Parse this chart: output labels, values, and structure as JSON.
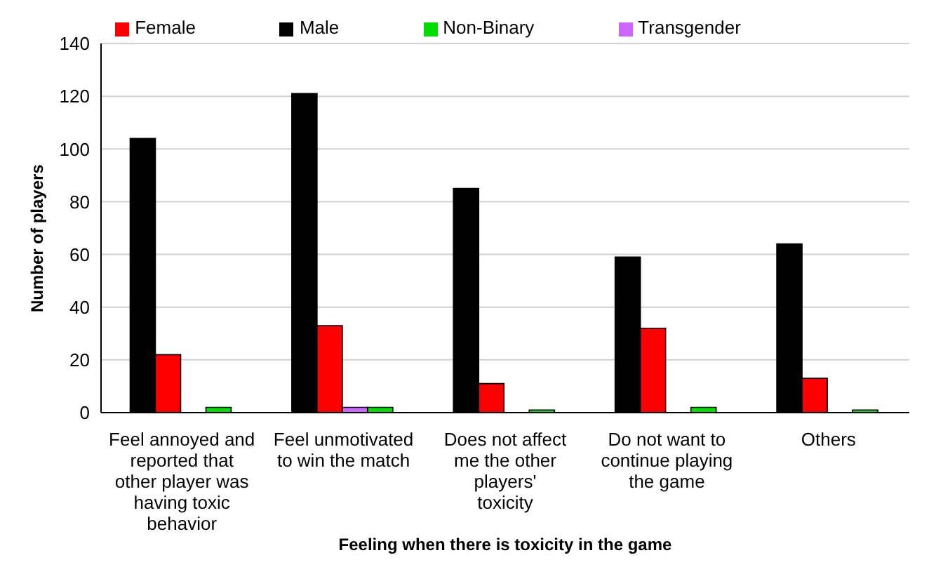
{
  "chart_data": {
    "type": "bar",
    "xlabel": "Feeling when there is toxicity in the game",
    "ylabel": "Number of players",
    "categories": [
      "Feel annoyed and reported that other player was having toxic behavior",
      "Feel unmotivated to win the match",
      "Does not affect me the other players' toxicity",
      "Do not want to continue playing the game",
      "Others"
    ],
    "series": [
      {
        "name": "Male",
        "color": "#000000",
        "values": [
          104,
          121,
          85,
          59,
          64
        ]
      },
      {
        "name": "Female",
        "color": "#ff0000",
        "values": [
          22,
          33,
          11,
          32,
          13
        ]
      },
      {
        "name": "Transgender",
        "color": "#cc66ff",
        "values": [
          0,
          2,
          0,
          0,
          0
        ]
      },
      {
        "name": "Non-Binary",
        "color": "#00dd00",
        "values": [
          2,
          2,
          1,
          2,
          1
        ]
      }
    ],
    "ylim": [
      0,
      140
    ],
    "yticks": [
      0,
      20,
      40,
      60,
      80,
      100,
      120,
      140
    ],
    "grid": "y",
    "legend": "top"
  }
}
